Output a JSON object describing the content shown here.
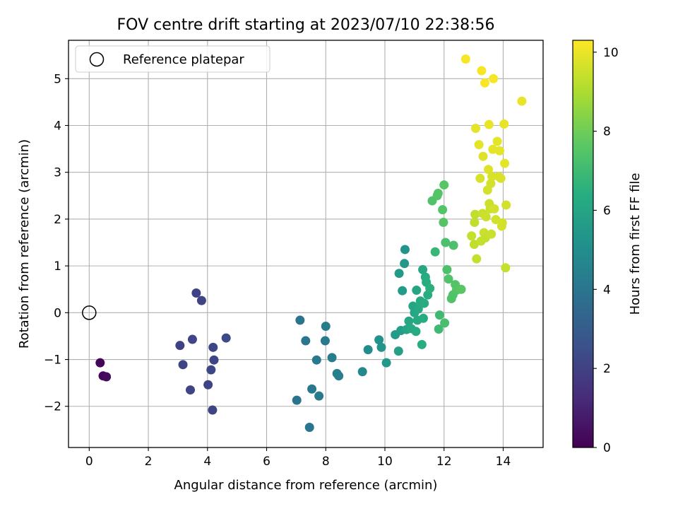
{
  "chart_data": {
    "type": "scatter",
    "title": "FOV centre drift starting at 2023/07/10 22:38:56",
    "xlabel": "Angular distance from reference (arcmin)",
    "ylabel": "Rotation from reference (arcmin)",
    "xlim": [
      -0.7,
      15.35
    ],
    "ylim": [
      -2.88,
      5.82
    ],
    "xticks": [
      0,
      2,
      4,
      6,
      8,
      10,
      12,
      14
    ],
    "yticks": [
      -2,
      -1,
      0,
      1,
      2,
      3,
      4,
      5
    ],
    "xtick_labels": [
      "0",
      "2",
      "4",
      "6",
      "8",
      "10",
      "12",
      "14"
    ],
    "ytick_labels": [
      "−2",
      "−1",
      "0",
      "1",
      "2",
      "3",
      "4",
      "5"
    ],
    "grid": true,
    "legend": {
      "position": "top-left",
      "entries": [
        "Reference platepar"
      ]
    },
    "reference_point": {
      "x": 0,
      "y": 0
    },
    "colorbar": {
      "label": "Hours from first FF file",
      "range": [
        0,
        10.3
      ],
      "ticks": [
        0,
        2,
        4,
        6,
        8,
        10
      ],
      "tick_labels": [
        "0",
        "2",
        "4",
        "6",
        "8",
        "10"
      ],
      "colormap": "viridis"
    },
    "points": [
      {
        "x": 0.37,
        "y": -1.07,
        "h": 0.1
      },
      {
        "x": 0.47,
        "y": -1.35,
        "h": 0.2
      },
      {
        "x": 0.58,
        "y": -1.37,
        "h": 0.3
      },
      {
        "x": 3.07,
        "y": -0.7,
        "h": 2.0
      },
      {
        "x": 3.17,
        "y": -1.11,
        "h": 2.1
      },
      {
        "x": 3.42,
        "y": -1.65,
        "h": 2.1
      },
      {
        "x": 3.49,
        "y": -0.57,
        "h": 2.2
      },
      {
        "x": 3.62,
        "y": 0.42,
        "h": 2.0
      },
      {
        "x": 3.8,
        "y": 0.26,
        "h": 2.1
      },
      {
        "x": 4.02,
        "y": -1.54,
        "h": 2.1
      },
      {
        "x": 4.12,
        "y": -1.22,
        "h": 2.2
      },
      {
        "x": 4.17,
        "y": -2.08,
        "h": 2.1
      },
      {
        "x": 4.19,
        "y": -0.74,
        "h": 2.2
      },
      {
        "x": 4.22,
        "y": -1.01,
        "h": 2.2
      },
      {
        "x": 4.63,
        "y": -0.54,
        "h": 2.3
      },
      {
        "x": 7.02,
        "y": -1.87,
        "h": 3.9
      },
      {
        "x": 7.13,
        "y": -0.16,
        "h": 3.9
      },
      {
        "x": 7.32,
        "y": -0.6,
        "h": 4.0
      },
      {
        "x": 7.45,
        "y": -2.45,
        "h": 4.0
      },
      {
        "x": 7.53,
        "y": -1.63,
        "h": 4.1
      },
      {
        "x": 7.69,
        "y": -1.01,
        "h": 4.1
      },
      {
        "x": 7.77,
        "y": -1.78,
        "h": 4.2
      },
      {
        "x": 7.98,
        "y": -0.6,
        "h": 4.2
      },
      {
        "x": 8.0,
        "y": -0.29,
        "h": 4.3
      },
      {
        "x": 8.21,
        "y": -0.96,
        "h": 4.3
      },
      {
        "x": 8.38,
        "y": -1.3,
        "h": 4.4
      },
      {
        "x": 8.44,
        "y": -1.35,
        "h": 4.4
      },
      {
        "x": 9.24,
        "y": -1.26,
        "h": 4.8
      },
      {
        "x": 9.43,
        "y": -0.79,
        "h": 5.0
      },
      {
        "x": 9.8,
        "y": -0.58,
        "h": 5.2
      },
      {
        "x": 9.88,
        "y": -0.74,
        "h": 5.3
      },
      {
        "x": 10.05,
        "y": -1.07,
        "h": 5.4
      },
      {
        "x": 10.35,
        "y": -0.47,
        "h": 5.6
      },
      {
        "x": 10.46,
        "y": -0.82,
        "h": 5.8
      },
      {
        "x": 10.48,
        "y": 0.84,
        "h": 5.5
      },
      {
        "x": 10.54,
        "y": -0.38,
        "h": 5.7
      },
      {
        "x": 10.59,
        "y": 0.47,
        "h": 5.6
      },
      {
        "x": 10.66,
        "y": 1.05,
        "h": 5.4
      },
      {
        "x": 10.68,
        "y": 1.35,
        "h": 5.3
      },
      {
        "x": 10.73,
        "y": -0.36,
        "h": 6.0
      },
      {
        "x": 10.81,
        "y": -0.18,
        "h": 6.1
      },
      {
        "x": 10.89,
        "y": -0.34,
        "h": 6.2
      },
      {
        "x": 10.95,
        "y": 0.14,
        "h": 6.0
      },
      {
        "x": 11.0,
        "y": 0.0,
        "h": 6.1
      },
      {
        "x": 11.05,
        "y": -0.4,
        "h": 6.3
      },
      {
        "x": 11.07,
        "y": 0.48,
        "h": 6.0
      },
      {
        "x": 11.1,
        "y": -0.16,
        "h": 6.2
      },
      {
        "x": 11.13,
        "y": 0.08,
        "h": 6.2
      },
      {
        "x": 11.2,
        "y": 0.25,
        "h": 6.2
      },
      {
        "x": 11.25,
        "y": -0.68,
        "h": 6.4
      },
      {
        "x": 11.28,
        "y": 0.92,
        "h": 6.1
      },
      {
        "x": 11.3,
        "y": -0.12,
        "h": 6.3
      },
      {
        "x": 11.33,
        "y": 0.2,
        "h": 6.3
      },
      {
        "x": 11.37,
        "y": 0.76,
        "h": 6.3
      },
      {
        "x": 11.4,
        "y": 0.65,
        "h": 6.4
      },
      {
        "x": 11.45,
        "y": 0.38,
        "h": 6.4
      },
      {
        "x": 11.52,
        "y": 0.52,
        "h": 6.5
      },
      {
        "x": 11.6,
        "y": 2.39,
        "h": 7.4
      },
      {
        "x": 11.7,
        "y": 1.3,
        "h": 6.8
      },
      {
        "x": 11.77,
        "y": 2.5,
        "h": 7.5
      },
      {
        "x": 11.8,
        "y": 2.55,
        "h": 7.5
      },
      {
        "x": 11.82,
        "y": -0.35,
        "h": 7.0
      },
      {
        "x": 11.85,
        "y": -0.05,
        "h": 7.0
      },
      {
        "x": 11.95,
        "y": 2.2,
        "h": 7.5
      },
      {
        "x": 11.98,
        "y": 1.93,
        "h": 7.5
      },
      {
        "x": 12.0,
        "y": 2.73,
        "h": 7.6
      },
      {
        "x": 12.02,
        "y": -0.22,
        "h": 7.2
      },
      {
        "x": 12.05,
        "y": 1.5,
        "h": 7.3
      },
      {
        "x": 12.1,
        "y": 0.92,
        "h": 7.3
      },
      {
        "x": 12.15,
        "y": 0.72,
        "h": 7.4
      },
      {
        "x": 12.25,
        "y": 0.3,
        "h": 7.4
      },
      {
        "x": 12.3,
        "y": 0.38,
        "h": 7.4
      },
      {
        "x": 12.32,
        "y": 1.44,
        "h": 7.3
      },
      {
        "x": 12.38,
        "y": 0.6,
        "h": 7.5
      },
      {
        "x": 12.42,
        "y": 0.48,
        "h": 7.5
      },
      {
        "x": 12.58,
        "y": 0.5,
        "h": 7.6
      },
      {
        "x": 12.73,
        "y": 5.42,
        "h": 10.2
      },
      {
        "x": 12.93,
        "y": 1.64,
        "h": 9.4
      },
      {
        "x": 13.02,
        "y": 1.46,
        "h": 9.3
      },
      {
        "x": 13.03,
        "y": 1.93,
        "h": 9.3
      },
      {
        "x": 13.05,
        "y": 2.1,
        "h": 9.3
      },
      {
        "x": 13.07,
        "y": 3.94,
        "h": 9.9
      },
      {
        "x": 13.1,
        "y": 1.15,
        "h": 9.4
      },
      {
        "x": 13.18,
        "y": 3.59,
        "h": 9.9
      },
      {
        "x": 13.22,
        "y": 2.87,
        "h": 9.7
      },
      {
        "x": 13.25,
        "y": 1.53,
        "h": 9.4
      },
      {
        "x": 13.27,
        "y": 5.17,
        "h": 10.2
      },
      {
        "x": 13.3,
        "y": 2.12,
        "h": 9.5
      },
      {
        "x": 13.32,
        "y": 3.34,
        "h": 9.8
      },
      {
        "x": 13.35,
        "y": 1.71,
        "h": 9.5
      },
      {
        "x": 13.38,
        "y": 4.91,
        "h": 10.2
      },
      {
        "x": 13.4,
        "y": 1.6,
        "h": 9.4
      },
      {
        "x": 13.42,
        "y": 2.05,
        "h": 9.5
      },
      {
        "x": 13.47,
        "y": 2.62,
        "h": 9.6
      },
      {
        "x": 13.5,
        "y": 3.06,
        "h": 9.8
      },
      {
        "x": 13.52,
        "y": 4.02,
        "h": 10.0
      },
      {
        "x": 13.53,
        "y": 2.33,
        "h": 9.5
      },
      {
        "x": 13.56,
        "y": 2.22,
        "h": 9.5
      },
      {
        "x": 13.58,
        "y": 2.76,
        "h": 9.6
      },
      {
        "x": 13.6,
        "y": 1.68,
        "h": 9.5
      },
      {
        "x": 13.62,
        "y": 2.91,
        "h": 9.7
      },
      {
        "x": 13.65,
        "y": 3.49,
        "h": 9.9
      },
      {
        "x": 13.67,
        "y": 5.0,
        "h": 10.2
      },
      {
        "x": 13.7,
        "y": 2.22,
        "h": 9.6
      },
      {
        "x": 13.75,
        "y": 1.99,
        "h": 9.6
      },
      {
        "x": 13.8,
        "y": 3.66,
        "h": 9.9
      },
      {
        "x": 13.85,
        "y": 2.91,
        "h": 9.7
      },
      {
        "x": 13.88,
        "y": 3.46,
        "h": 9.9
      },
      {
        "x": 13.92,
        "y": 2.87,
        "h": 9.7
      },
      {
        "x": 13.95,
        "y": 1.85,
        "h": 9.6
      },
      {
        "x": 13.97,
        "y": 1.92,
        "h": 9.6
      },
      {
        "x": 14.03,
        "y": 4.03,
        "h": 10.0
      },
      {
        "x": 14.05,
        "y": 3.19,
        "h": 9.9
      },
      {
        "x": 14.08,
        "y": 0.96,
        "h": 9.4
      },
      {
        "x": 14.1,
        "y": 2.3,
        "h": 9.6
      },
      {
        "x": 14.63,
        "y": 4.52,
        "h": 10.0
      }
    ]
  }
}
